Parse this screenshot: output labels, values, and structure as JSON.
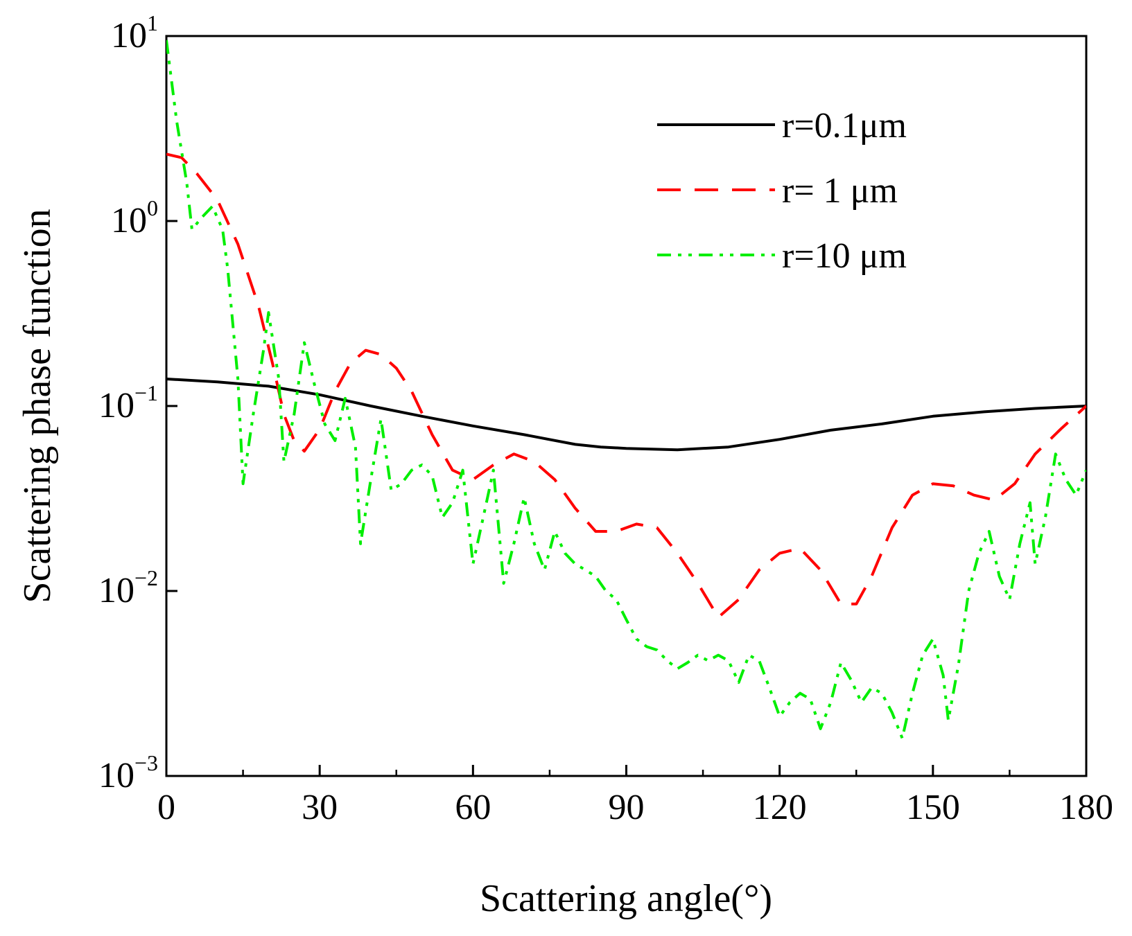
{
  "chart_data": {
    "type": "line",
    "title": "",
    "xlabel": "Scattering angle(°)",
    "ylabel": "Scattering phase function",
    "xlim": [
      0,
      180
    ],
    "ylim_log10": [
      -3,
      1
    ],
    "yscale": "log",
    "grid": false,
    "legend_position": "top-right",
    "x_ticks": [
      {
        "value": 0,
        "label": "0"
      },
      {
        "value": 30,
        "label": "30"
      },
      {
        "value": 60,
        "label": "60"
      },
      {
        "value": 90,
        "label": "90"
      },
      {
        "value": 120,
        "label": "120"
      },
      {
        "value": 150,
        "label": "150"
      },
      {
        "value": 180,
        "label": "180"
      }
    ],
    "y_ticks": [
      {
        "exp": 1,
        "base": "10",
        "sup": "1"
      },
      {
        "exp": 0,
        "base": "10",
        "sup": "0"
      },
      {
        "exp": -1,
        "base": "10",
        "sup": "−1"
      },
      {
        "exp": -2,
        "base": "10",
        "sup": "−2"
      },
      {
        "exp": -3,
        "base": "10",
        "sup": "−3"
      }
    ],
    "series": [
      {
        "name": "r=0.1μm",
        "color": "#000000",
        "dash": "solid",
        "points": [
          [
            0,
            0.14
          ],
          [
            10,
            0.135
          ],
          [
            20,
            0.128
          ],
          [
            30,
            0.115
          ],
          [
            40,
            0.1
          ],
          [
            50,
            0.088
          ],
          [
            60,
            0.078
          ],
          [
            70,
            0.07
          ],
          [
            80,
            0.062
          ],
          [
            85,
            0.06
          ],
          [
            90,
            0.059
          ],
          [
            100,
            0.058
          ],
          [
            110,
            0.06
          ],
          [
            120,
            0.066
          ],
          [
            130,
            0.074
          ],
          [
            140,
            0.08
          ],
          [
            150,
            0.088
          ],
          [
            160,
            0.093
          ],
          [
            170,
            0.097
          ],
          [
            180,
            0.1
          ]
        ]
      },
      {
        "name": "r= 1  μm",
        "color": "#ff0000",
        "dash": "dashed",
        "points": [
          [
            0,
            2.3
          ],
          [
            3,
            2.2
          ],
          [
            6,
            1.8
          ],
          [
            10,
            1.3
          ],
          [
            14,
            0.75
          ],
          [
            18,
            0.35
          ],
          [
            21,
            0.16
          ],
          [
            23,
            0.09
          ],
          [
            25,
            0.065
          ],
          [
            27,
            0.057
          ],
          [
            30,
            0.075
          ],
          [
            33,
            0.12
          ],
          [
            36,
            0.17
          ],
          [
            39,
            0.2
          ],
          [
            42,
            0.19
          ],
          [
            45,
            0.16
          ],
          [
            48,
            0.12
          ],
          [
            52,
            0.07
          ],
          [
            56,
            0.045
          ],
          [
            60,
            0.04
          ],
          [
            64,
            0.048
          ],
          [
            68,
            0.055
          ],
          [
            72,
            0.05
          ],
          [
            76,
            0.04
          ],
          [
            80,
            0.028
          ],
          [
            84,
            0.021
          ],
          [
            88,
            0.021
          ],
          [
            92,
            0.023
          ],
          [
            96,
            0.022
          ],
          [
            100,
            0.016
          ],
          [
            104,
            0.011
          ],
          [
            108,
            0.0072
          ],
          [
            112,
            0.009
          ],
          [
            116,
            0.013
          ],
          [
            120,
            0.016
          ],
          [
            124,
            0.017
          ],
          [
            128,
            0.013
          ],
          [
            132,
            0.0085
          ],
          [
            135,
            0.0085
          ],
          [
            138,
            0.012
          ],
          [
            142,
            0.022
          ],
          [
            146,
            0.033
          ],
          [
            150,
            0.038
          ],
          [
            154,
            0.037
          ],
          [
            158,
            0.033
          ],
          [
            162,
            0.031
          ],
          [
            166,
            0.038
          ],
          [
            170,
            0.055
          ],
          [
            175,
            0.075
          ],
          [
            180,
            0.1
          ]
        ]
      },
      {
        "name": "r=10 μm",
        "color": "#00ee00",
        "dash": "dashdotdot",
        "points": [
          [
            0,
            9.5
          ],
          [
            2,
            3.5
          ],
          [
            4,
            1.6
          ],
          [
            5,
            0.9
          ],
          [
            7,
            1.05
          ],
          [
            9,
            1.2
          ],
          [
            11,
            0.9
          ],
          [
            12,
            0.55
          ],
          [
            14,
            0.14
          ],
          [
            15,
            0.038
          ],
          [
            17,
            0.09
          ],
          [
            19,
            0.2
          ],
          [
            20,
            0.32
          ],
          [
            22,
            0.14
          ],
          [
            23,
            0.05
          ],
          [
            25,
            0.09
          ],
          [
            27,
            0.22
          ],
          [
            29,
            0.13
          ],
          [
            31,
            0.08
          ],
          [
            33,
            0.065
          ],
          [
            35,
            0.11
          ],
          [
            37,
            0.06
          ],
          [
            38,
            0.018
          ],
          [
            40,
            0.04
          ],
          [
            42,
            0.085
          ],
          [
            44,
            0.035
          ],
          [
            46,
            0.038
          ],
          [
            48,
            0.045
          ],
          [
            50,
            0.048
          ],
          [
            52,
            0.042
          ],
          [
            54,
            0.025
          ],
          [
            56,
            0.03
          ],
          [
            58,
            0.045
          ],
          [
            60,
            0.014
          ],
          [
            62,
            0.025
          ],
          [
            64,
            0.045
          ],
          [
            66,
            0.011
          ],
          [
            68,
            0.018
          ],
          [
            70,
            0.032
          ],
          [
            72,
            0.018
          ],
          [
            74,
            0.013
          ],
          [
            76,
            0.021
          ],
          [
            78,
            0.016
          ],
          [
            80,
            0.014
          ],
          [
            82,
            0.013
          ],
          [
            84,
            0.012
          ],
          [
            86,
            0.01
          ],
          [
            88,
            0.009
          ],
          [
            90,
            0.007
          ],
          [
            92,
            0.0055
          ],
          [
            94,
            0.005
          ],
          [
            96,
            0.0048
          ],
          [
            98,
            0.0042
          ],
          [
            100,
            0.0038
          ],
          [
            102,
            0.0041
          ],
          [
            104,
            0.0045
          ],
          [
            106,
            0.0042
          ],
          [
            108,
            0.0045
          ],
          [
            110,
            0.0042
          ],
          [
            112,
            0.0032
          ],
          [
            114,
            0.0045
          ],
          [
            116,
            0.0042
          ],
          [
            118,
            0.003
          ],
          [
            120,
            0.0021
          ],
          [
            122,
            0.0025
          ],
          [
            124,
            0.0028
          ],
          [
            126,
            0.0026
          ],
          [
            128,
            0.0018
          ],
          [
            130,
            0.0025
          ],
          [
            132,
            0.0041
          ],
          [
            134,
            0.0033
          ],
          [
            136,
            0.0025
          ],
          [
            138,
            0.003
          ],
          [
            140,
            0.0028
          ],
          [
            142,
            0.0022
          ],
          [
            144,
            0.0016
          ],
          [
            146,
            0.0028
          ],
          [
            148,
            0.0045
          ],
          [
            150,
            0.0055
          ],
          [
            152,
            0.0035
          ],
          [
            153,
            0.002
          ],
          [
            155,
            0.004
          ],
          [
            157,
            0.01
          ],
          [
            159,
            0.016
          ],
          [
            161,
            0.021
          ],
          [
            163,
            0.012
          ],
          [
            165,
            0.009
          ],
          [
            167,
            0.018
          ],
          [
            169,
            0.03
          ],
          [
            170,
            0.014
          ],
          [
            172,
            0.025
          ],
          [
            174,
            0.055
          ],
          [
            176,
            0.04
          ],
          [
            178,
            0.033
          ],
          [
            180,
            0.045
          ]
        ]
      }
    ]
  }
}
